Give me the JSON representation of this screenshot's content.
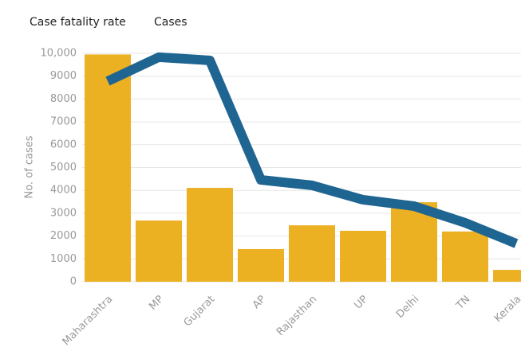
{
  "chart_data": {
    "type": "bar",
    "legend": [
      "Case fatality rate",
      "Cases"
    ],
    "ylabel": "No. of cases",
    "categories": [
      "Maharashtra",
      "MP",
      "Gujarat",
      "AP",
      "Rajasthan",
      "UP",
      "Delhi",
      "TN",
      "Kerala"
    ],
    "series": [
      {
        "name": "Cases",
        "type": "bar",
        "color": "#ecb023",
        "values": [
          9950,
          2680,
          4110,
          1430,
          2470,
          2230,
          3480,
          2200,
          520
        ]
      },
      {
        "name": "Case fatality rate",
        "type": "line",
        "color": "#1f6592",
        "values": [
          8780,
          9830,
          9690,
          4460,
          4220,
          3590,
          3310,
          2580,
          1670
        ]
      }
    ],
    "ylim": [
      0,
      10000
    ],
    "yticks": [
      0,
      1000,
      2000,
      3000,
      4000,
      5000,
      6000,
      7000,
      8000,
      9000,
      {
        "value": 10000,
        "label": "10,000"
      }
    ],
    "grid": true
  }
}
